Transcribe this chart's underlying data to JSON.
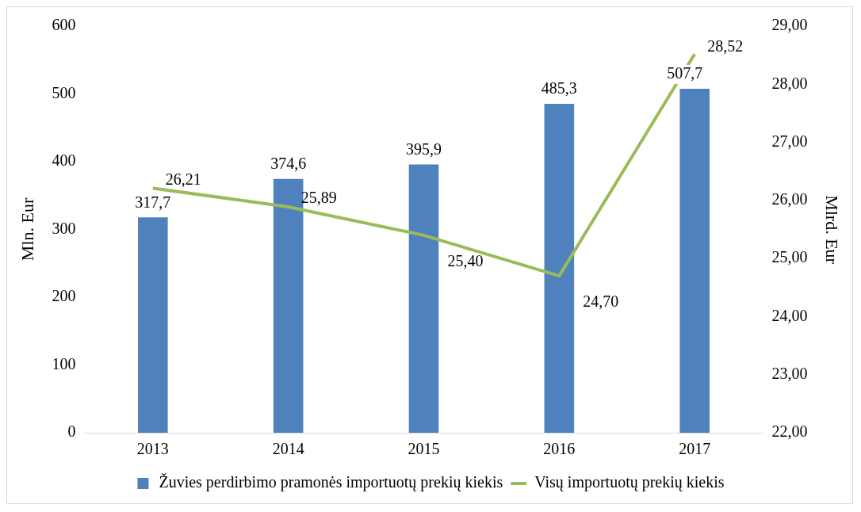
{
  "chart_data": {
    "type": "bar",
    "categories": [
      "2013",
      "2014",
      "2015",
      "2016",
      "2017"
    ],
    "ylabel": "Mln. Eur",
    "y2label": "Mlrd. Eur",
    "ylim": [
      0,
      600
    ],
    "yticks": [
      0,
      100,
      200,
      300,
      400,
      500,
      600
    ],
    "y2lim": [
      22,
      29
    ],
    "y2ticks": [
      {
        "value": 22,
        "label": "22,00"
      },
      {
        "value": 23,
        "label": "23,00"
      },
      {
        "value": 24,
        "label": "24,00"
      },
      {
        "value": 25,
        "label": "25,00"
      },
      {
        "value": 26,
        "label": "26,00"
      },
      {
        "value": 27,
        "label": "27,00"
      },
      {
        "value": 28,
        "label": "28,00"
      },
      {
        "value": 29,
        "label": "29,00"
      }
    ],
    "series": [
      {
        "name": "Žuvies perdirbimo pramonės importuotų prekių kiekis",
        "color": "#4f81bd",
        "values": [
          317.7,
          374.6,
          395.9,
          485.3,
          507.7
        ],
        "value_labels": [
          "317,7",
          "374,6",
          "395,9",
          "485,3",
          "507,7"
        ]
      },
      {
        "name": "Visų importuotų prekių kiekis",
        "type": "line",
        "axis": "y2",
        "color": "#9bbb59",
        "values": [
          26.21,
          25.89,
          25.4,
          24.7,
          28.52
        ],
        "value_labels": [
          "26,21",
          "25,89",
          "25,40",
          "24,70",
          "28,52"
        ]
      }
    ],
    "legend": "bottom",
    "grid": false,
    "marker": "none",
    "line_style": "solid"
  }
}
